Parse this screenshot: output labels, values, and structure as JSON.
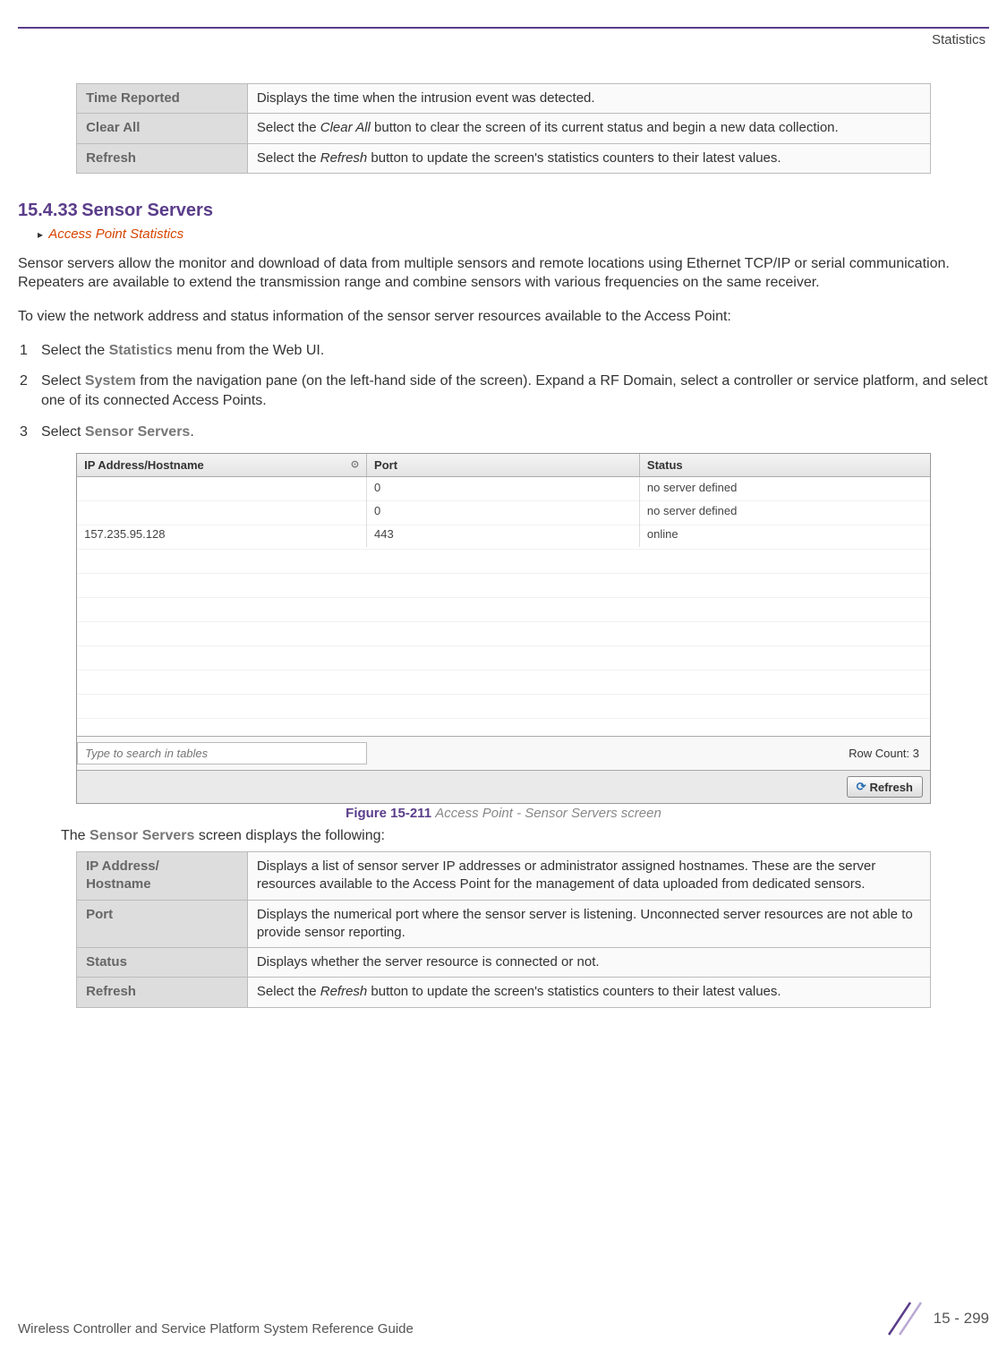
{
  "header": {
    "title": "Statistics"
  },
  "table1": {
    "rows": [
      {
        "term": "Time Reported",
        "desc": "Displays the time when the intrusion event was detected."
      },
      {
        "term": "Clear All",
        "desc": "Select the <em class='it'>Clear All</em> button to clear the screen of its current status and begin a new data collection."
      },
      {
        "term": "Refresh",
        "desc": "Select the <em class='it'>Refresh</em> button to update the screen's statistics counters to their latest values."
      }
    ]
  },
  "section": {
    "number": "15.4.33",
    "title": "Sensor Servers",
    "breadcrumb": "Access Point Statistics"
  },
  "para1": "Sensor servers allow the monitor and download of data from multiple sensors and remote locations using Ethernet TCP/IP or serial communication. Repeaters are available to extend the transmission range and combine sensors with various frequencies on the same receiver.",
  "para2": "To view the network address and status information of the sensor server resources available to the Access Point:",
  "steps": [
    {
      "n": "1",
      "html": "Select the <span class='bold-gray'>Statistics</span> menu from the Web UI."
    },
    {
      "n": "2",
      "html": "Select <span class='bold-gray'>System</span> from the navigation pane (on the left-hand side of the screen). Expand a RF Domain, select a controller or service platform, and select one of its connected Access Points."
    },
    {
      "n": "3",
      "html": "Select <span class='bold-gray'>Sensor Servers</span>."
    }
  ],
  "grid": {
    "columns": {
      "ip": "IP Address/Hostname",
      "port": "Port",
      "status": "Status"
    },
    "rows": [
      {
        "ip": "",
        "port": "0",
        "status": "no server defined"
      },
      {
        "ip": "",
        "port": "0",
        "status": "no server defined"
      },
      {
        "ip": "157.235.95.128",
        "port": "443",
        "status": "online"
      }
    ],
    "search_placeholder": "Type to search in tables",
    "row_count_label": "Row Count:",
    "row_count_value": "3",
    "refresh_label": "Refresh"
  },
  "figure": {
    "label": "Figure 15-211",
    "text": "Access Point - Sensor Servers screen"
  },
  "after_fig": "The <span class='bold-gray'>Sensor Servers</span> screen displays the following:",
  "table2": {
    "rows": [
      {
        "term": "IP Address/\nHostname",
        "desc": "Displays a list of sensor server IP addresses or administrator assigned hostnames. These are the server resources available to the Access Point for the management of data uploaded from dedicated sensors."
      },
      {
        "term": "Port",
        "desc": "Displays the numerical port where the sensor server is listening. Unconnected server resources are not able to provide sensor reporting."
      },
      {
        "term": "Status",
        "desc": "Displays whether the server resource is connected or not."
      },
      {
        "term": "Refresh",
        "desc": "Select the <em class='it'>Refresh</em> button to update the screen's statistics counters to their latest values."
      }
    ]
  },
  "footer": {
    "left": "Wireless Controller and Service Platform System Reference Guide",
    "page": "15 - 299"
  },
  "colors": {
    "accent": "#5a3d8a",
    "link": "#d64500"
  }
}
